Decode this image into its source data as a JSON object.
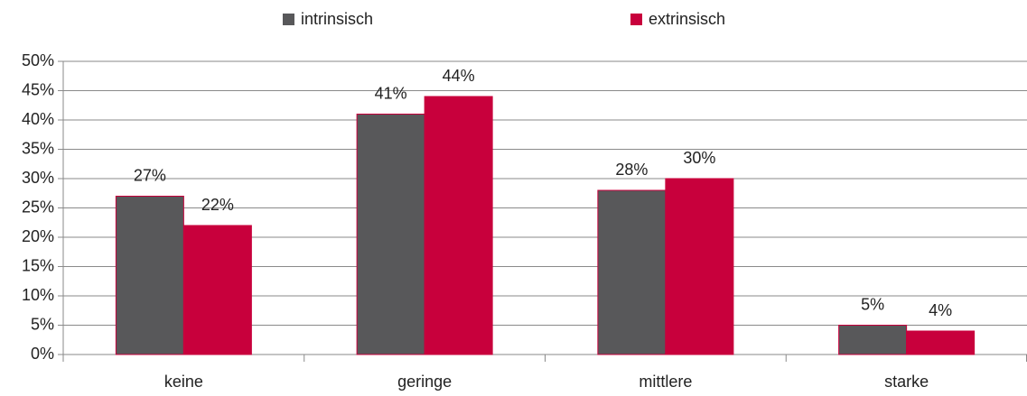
{
  "chart_data": {
    "type": "bar",
    "categories": [
      "keine",
      "geringe",
      "mittlere",
      "starke"
    ],
    "series": [
      {
        "name": "intrinsisch",
        "color": "#58585a",
        "values": [
          27,
          41,
          28,
          5
        ],
        "value_labels": [
          "27%",
          "41%",
          "28%",
          "5%"
        ]
      },
      {
        "name": "extrinsisch",
        "color": "#c8003c",
        "values": [
          22,
          44,
          30,
          4
        ],
        "value_labels": [
          "22%",
          "44%",
          "30%",
          "4%"
        ]
      }
    ],
    "ylim": [
      0,
      50
    ],
    "yticks": [
      {
        "value": 0,
        "label": "0%"
      },
      {
        "value": 5,
        "label": "5%"
      },
      {
        "value": 10,
        "label": "10%"
      },
      {
        "value": 15,
        "label": "15%"
      },
      {
        "value": 20,
        "label": "20%"
      },
      {
        "value": 25,
        "label": "25%"
      },
      {
        "value": 30,
        "label": "30%"
      },
      {
        "value": 35,
        "label": "35%"
      },
      {
        "value": 40,
        "label": "40%"
      },
      {
        "value": 45,
        "label": "45%"
      },
      {
        "value": 50,
        "label": "50%"
      }
    ],
    "grid": true,
    "legend": "top"
  }
}
